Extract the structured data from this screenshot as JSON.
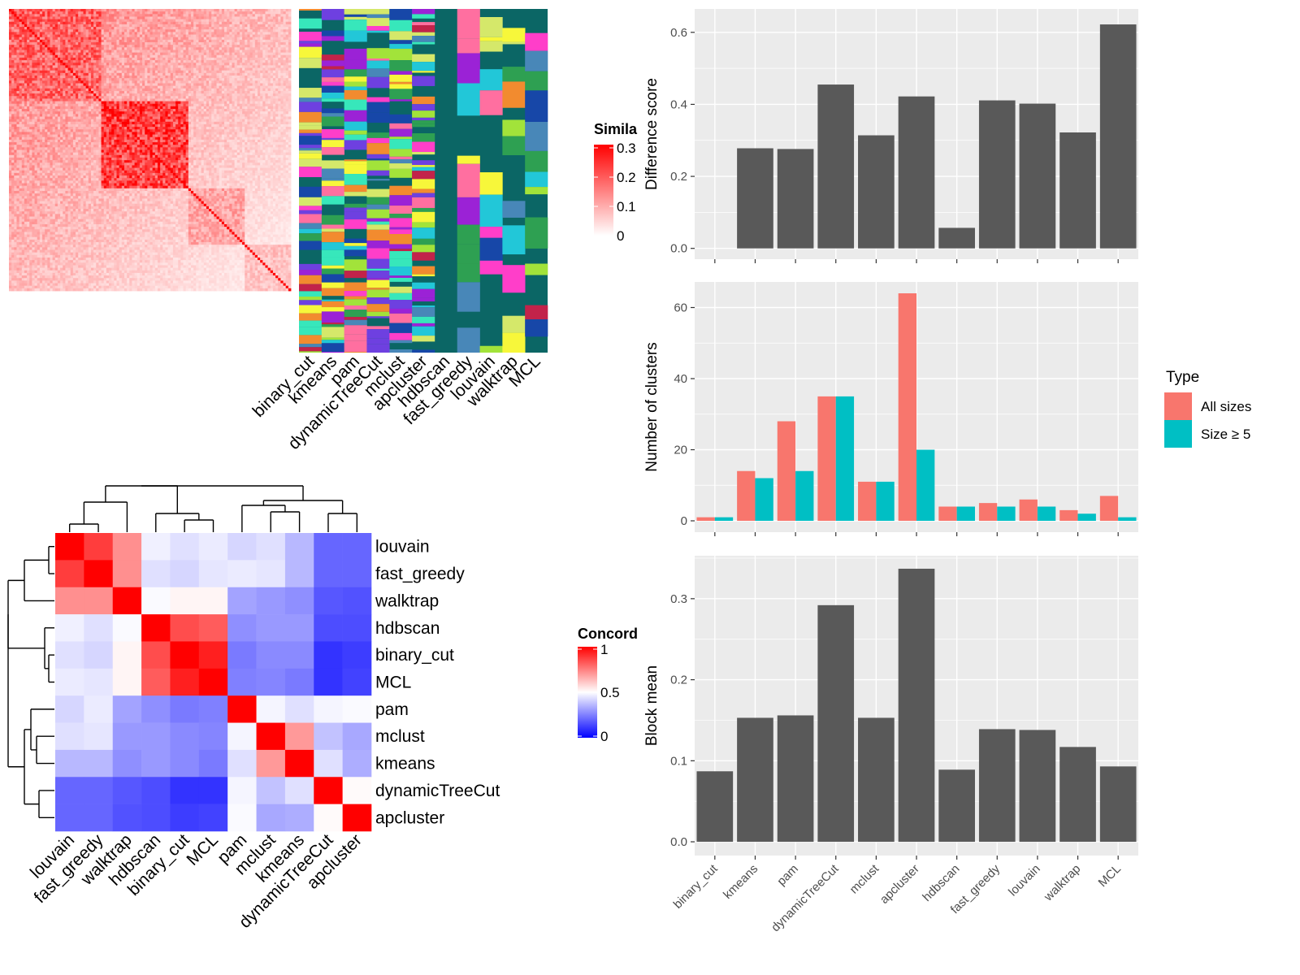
{
  "colors": {
    "panel_bg": "#ebebeb",
    "grid": "#ffffff",
    "bar": "#595959",
    "all_sizes": "#f8766d",
    "size_ge5": "#00bfc4",
    "sim_high": "#ff0000",
    "sim_low": "#ffffff",
    "conc_high": "#ff0000",
    "conc_mid": "#ffffff",
    "conc_low": "#0000ff",
    "cluster_bg": "#0b6665"
  },
  "similarity_legend": {
    "title": "Simila",
    "ticks": [
      "0.3",
      "0.2",
      "0.1",
      "0"
    ]
  },
  "concordance_legend": {
    "title": "Concord",
    "ticks": [
      "1",
      "0.5",
      "0"
    ]
  },
  "cluster_strip_labels": [
    "binary_cut",
    "kmeans",
    "pam",
    "dynamicTreeCut",
    "mclust",
    "apcluster",
    "hdbscan",
    "fast_greedy",
    "louvain",
    "walktrap",
    "MCL"
  ],
  "concordance": {
    "row_labels": [
      "louvain",
      "fast_greedy",
      "walktrap",
      "hdbscan",
      "binary_cut",
      "MCL",
      "pam",
      "mclust",
      "kmeans",
      "dynamicTreeCut",
      "apcluster"
    ],
    "col_labels": [
      "louvain",
      "fast_greedy",
      "walktrap",
      "hdbscan",
      "binary_cut",
      "MCL",
      "pam",
      "mclust",
      "kmeans",
      "dynamicTreeCut",
      "apcluster"
    ],
    "matrix": [
      [
        1.0,
        0.88,
        0.72,
        0.47,
        0.44,
        0.46,
        0.42,
        0.44,
        0.36,
        0.2,
        0.2
      ],
      [
        0.88,
        1.0,
        0.72,
        0.44,
        0.42,
        0.45,
        0.46,
        0.45,
        0.36,
        0.2,
        0.2
      ],
      [
        0.72,
        0.72,
        1.0,
        0.49,
        0.52,
        0.52,
        0.32,
        0.3,
        0.28,
        0.17,
        0.16
      ],
      [
        0.47,
        0.44,
        0.49,
        1.0,
        0.85,
        0.82,
        0.28,
        0.3,
        0.3,
        0.15,
        0.15
      ],
      [
        0.44,
        0.42,
        0.52,
        0.85,
        1.0,
        0.94,
        0.24,
        0.27,
        0.27,
        0.1,
        0.12
      ],
      [
        0.46,
        0.45,
        0.52,
        0.82,
        0.94,
        1.0,
        0.25,
        0.26,
        0.24,
        0.1,
        0.13
      ],
      [
        0.42,
        0.46,
        0.32,
        0.28,
        0.24,
        0.25,
        1.0,
        0.48,
        0.44,
        0.48,
        0.49
      ],
      [
        0.44,
        0.45,
        0.3,
        0.3,
        0.27,
        0.26,
        0.48,
        1.0,
        0.7,
        0.38,
        0.33
      ],
      [
        0.36,
        0.36,
        0.28,
        0.3,
        0.27,
        0.24,
        0.44,
        0.7,
        1.0,
        0.44,
        0.34
      ],
      [
        0.2,
        0.2,
        0.17,
        0.15,
        0.1,
        0.1,
        0.48,
        0.38,
        0.44,
        1.0,
        0.51
      ],
      [
        0.2,
        0.2,
        0.16,
        0.15,
        0.12,
        0.13,
        0.49,
        0.33,
        0.34,
        0.51,
        1.0
      ]
    ]
  },
  "chart_data": [
    {
      "type": "bar",
      "categories": [
        "binary_cut",
        "kmeans",
        "pam",
        "dynamicTreeCut",
        "mclust",
        "apcluster",
        "hdbscan",
        "fast_greedy",
        "louvain",
        "walktrap",
        "MCL"
      ],
      "values": [
        0.0,
        0.278,
        0.276,
        0.455,
        0.314,
        0.422,
        0.057,
        0.411,
        0.402,
        0.322,
        0.622
      ],
      "ylabel": "Difference score",
      "ylim": [
        -0.03,
        0.665
      ],
      "yticks": [
        "0.0",
        "0.2",
        "0.4",
        "0.6"
      ],
      "grid": true
    },
    {
      "type": "bar",
      "categories": [
        "binary_cut",
        "kmeans",
        "pam",
        "dynamicTreeCut",
        "mclust",
        "apcluster",
        "hdbscan",
        "fast_greedy",
        "louvain",
        "walktrap",
        "MCL"
      ],
      "series": [
        {
          "name": "All sizes",
          "values": [
            1,
            14,
            28,
            35,
            11,
            64,
            4,
            5,
            6,
            3,
            7
          ]
        },
        {
          "name": "Size ≥ 5",
          "values": [
            1,
            12,
            14,
            35,
            11,
            20,
            4,
            4,
            4,
            2,
            1
          ]
        }
      ],
      "ylabel": "Number of clusters",
      "ylim": [
        -3.2,
        67.2
      ],
      "yticks": [
        "0",
        "20",
        "40",
        "60"
      ],
      "legend_title": "Type",
      "legend": "right",
      "grid": true
    },
    {
      "type": "bar",
      "categories": [
        "binary_cut",
        "kmeans",
        "pam",
        "dynamicTreeCut",
        "mclust",
        "apcluster",
        "hdbscan",
        "fast_greedy",
        "louvain",
        "walktrap",
        "MCL"
      ],
      "values": [
        0.087,
        0.153,
        0.156,
        0.292,
        0.153,
        0.337,
        0.089,
        0.139,
        0.138,
        0.117,
        0.093
      ],
      "ylabel": "Block mean",
      "ylim": [
        -0.017,
        0.353
      ],
      "yticks": [
        "0.0",
        "0.1",
        "0.2",
        "0.3"
      ],
      "grid": true
    }
  ]
}
